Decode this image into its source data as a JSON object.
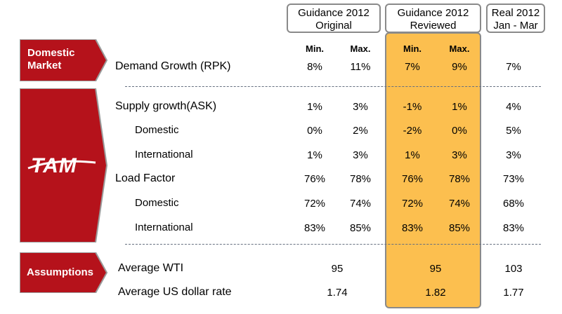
{
  "columns": {
    "guidance_original": {
      "line1": "Guidance 2012",
      "line2": "Original"
    },
    "guidance_reviewed": {
      "line1": "Guidance 2012",
      "line2": "Reviewed"
    },
    "real": {
      "line1": "Real 2012",
      "line2": "Jan - Mar"
    }
  },
  "subheaders": {
    "min": "Min.",
    "max": "Max."
  },
  "sections": {
    "domestic_market": {
      "line1": "Domestic",
      "line2": "Market"
    },
    "tam_logo_text": "TAM",
    "assumptions": "Assumptions"
  },
  "rows": [
    {
      "label": "Demand Growth (RPK)",
      "orig_min": "8%",
      "orig_max": "11%",
      "rev_min": "7%",
      "rev_max": "9%",
      "real": "7%"
    },
    {
      "label": "Supply growth(ASK)",
      "orig_min": "1%",
      "orig_max": "3%",
      "rev_min": "-1%",
      "rev_max": "1%",
      "real": "4%"
    },
    {
      "label": "Domestic",
      "orig_min": "0%",
      "orig_max": "2%",
      "rev_min": "-2%",
      "rev_max": "0%",
      "real": "5%"
    },
    {
      "label": "International",
      "orig_min": "1%",
      "orig_max": "3%",
      "rev_min": "1%",
      "rev_max": "3%",
      "real": "3%"
    },
    {
      "label": "Load Factor",
      "orig_min": "76%",
      "orig_max": "78%",
      "rev_min": "76%",
      "rev_max": "78%",
      "real": "73%"
    },
    {
      "label": "Domestic",
      "orig_min": "72%",
      "orig_max": "74%",
      "rev_min": "72%",
      "rev_max": "74%",
      "real": "68%"
    },
    {
      "label": "International",
      "orig_min": "83%",
      "orig_max": "85%",
      "rev_min": "83%",
      "rev_max": "85%",
      "real": "83%"
    }
  ],
  "assumption_rows": [
    {
      "label": "Average WTI",
      "orig": "95",
      "rev": "95",
      "real": "103"
    },
    {
      "label": "Average US dollar rate",
      "orig": "1.74",
      "rev": "1.82",
      "real": "1.77"
    }
  ],
  "colors": {
    "brand_red": "#b5121b",
    "highlight": "#fcbf4f",
    "border_gray": "#8a8a8a"
  }
}
